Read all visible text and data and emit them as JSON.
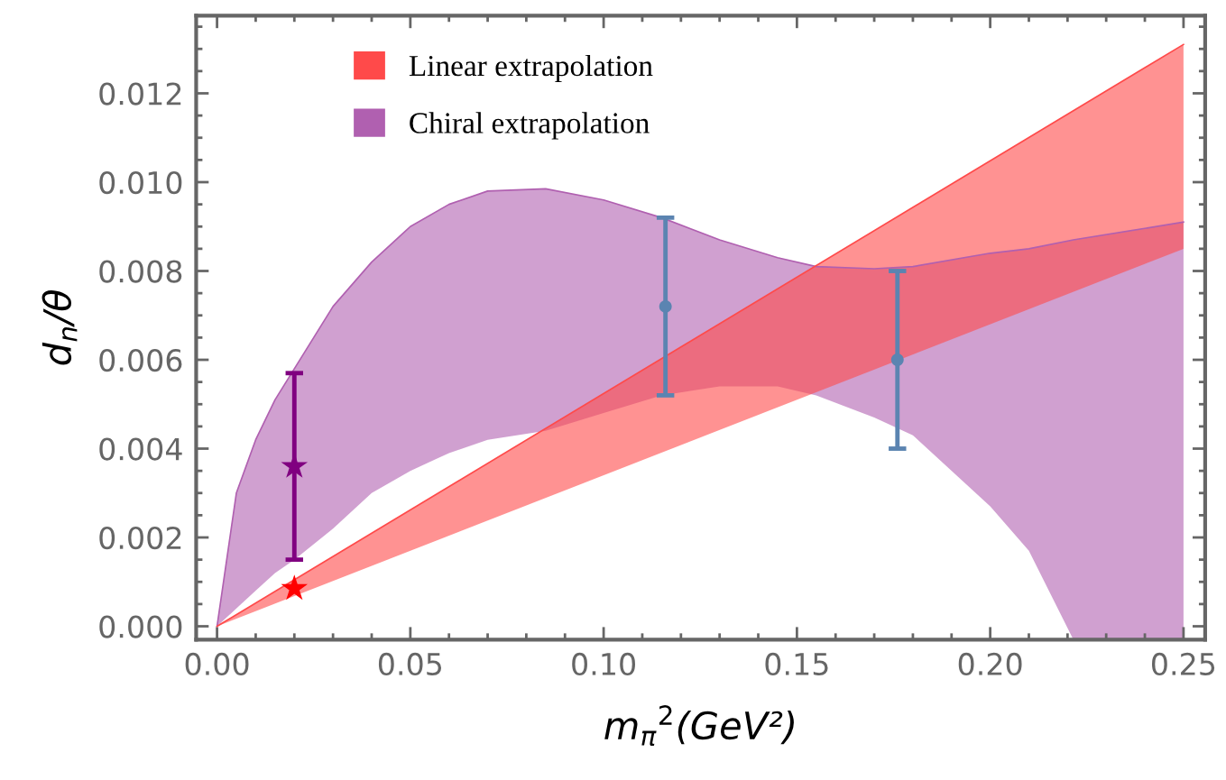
{
  "chart_data": {
    "type": "line",
    "xlabel": "m$_{π}$$^{2}$(GeV²)",
    "ylabel": "d$_{n}$/θ",
    "xlim": [
      -0.0054,
      0.2556
    ],
    "ylim": [
      -0.0003,
      0.01375
    ],
    "xticks": [
      {
        "value": 0,
        "label": "0.00"
      },
      {
        "value": 0.05,
        "label": "0.05"
      },
      {
        "value": 0.1,
        "label": "0.10"
      },
      {
        "value": 0.15,
        "label": "0.15"
      },
      {
        "value": 0.2,
        "label": "0.20"
      },
      {
        "value": 0.25,
        "label": "0.25"
      }
    ],
    "yticks": [
      {
        "value": 0,
        "label": "0.000"
      },
      {
        "value": 0.002,
        "label": "0.002"
      },
      {
        "value": 0.004,
        "label": "0.004"
      },
      {
        "value": 0.006,
        "label": "0.006"
      },
      {
        "value": 0.008,
        "label": "0.008"
      },
      {
        "value": 0.01,
        "label": "0.010"
      },
      {
        "value": 0.012,
        "label": "0.012"
      }
    ],
    "grid": false,
    "legend": "top left",
    "series": [
      {
        "name": "Chiral extrapolation",
        "color": "#b060b0",
        "x": [
          0,
          0.005,
          0.01,
          0.015,
          0.02,
          0.03,
          0.04,
          0.05,
          0.06,
          0.07,
          0.085,
          0.1,
          0.115,
          0.13,
          0.145,
          0.155,
          0.17,
          0.18,
          0.2,
          0.21,
          0.2215,
          0.25
        ],
        "values": [
          0,
          0.003,
          0.0042,
          0.0051,
          0.0058,
          0.0072,
          0.0082,
          0.009,
          0.0095,
          0.0098,
          0.00985,
          0.0096,
          0.0092,
          0.0087,
          0.0083,
          0.0081,
          0.00805,
          0.0081,
          0.0084,
          0.0085,
          0.0087,
          0.0091
        ],
        "upper": [
          0,
          0.003,
          0.0042,
          0.0051,
          0.0058,
          0.0072,
          0.0082,
          0.009,
          0.0095,
          0.0098,
          0.00985,
          0.0096,
          0.0092,
          0.0087,
          0.0083,
          0.0081,
          0.00805,
          0.0081,
          0.0084,
          0.0085,
          0.0087,
          0.0091
        ],
        "lower": [
          0,
          0.0004,
          0.0008,
          0.0012,
          0.0015,
          0.0022,
          0.003,
          0.0035,
          0.0039,
          0.0042,
          0.0044,
          0.0048,
          0.0052,
          0.0054,
          0.0054,
          0.0052,
          0.0047,
          0.0043,
          0.0027,
          0.0017,
          -0.0003,
          -0.0003
        ]
      },
      {
        "name": "Linear extrapolation",
        "color": "#ff4a4a",
        "x": [
          0,
          0.25
        ],
        "values": [
          0,
          0.0131
        ],
        "upper": [
          0,
          0.0131
        ],
        "lower": [
          0,
          0.0085
        ]
      },
      {
        "type": "scatter",
        "color": "#800080",
        "marker": "star",
        "x": [
          0.02
        ],
        "values": [
          0.0036
        ],
        "errors": [
          [
            0.0015,
            0.0057
          ]
        ]
      },
      {
        "type": "scatter",
        "color": "#ff0000",
        "marker": "star",
        "x": [
          0.02
        ],
        "values": [
          0.00085
        ]
      },
      {
        "type": "scatter",
        "color": "#5b84b1",
        "marker": "circle",
        "x": [
          0.116,
          0.176
        ],
        "values": [
          0.0072,
          0.006
        ],
        "errors": [
          [
            0.0052,
            0.0092
          ],
          [
            0.004,
            0.008
          ]
        ]
      }
    ]
  }
}
